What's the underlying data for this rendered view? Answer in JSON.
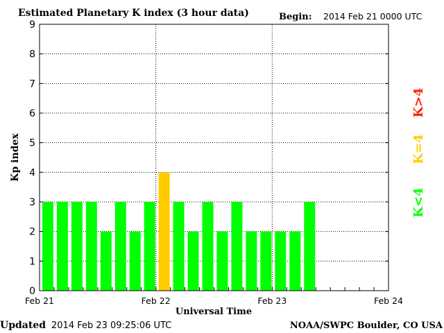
{
  "header": {
    "title": "Estimated Planetary K index (3 hour data)",
    "begin_label": "Begin:",
    "begin_value": "2014 Feb 21 0000 UTC"
  },
  "footer": {
    "updated_label": "Updated",
    "updated_value": "2014 Feb 23 09:25:06 UTC",
    "source": "NOAA/SWPC Boulder, CO USA"
  },
  "legend": {
    "high": "K>4",
    "equal": "K=4",
    "low": "K<4"
  },
  "colors": {
    "low": "#00ff00",
    "equal": "#ffcc00",
    "high": "#ff2200",
    "grid": "#000000",
    "axis": "#000000"
  },
  "chart_data": {
    "type": "bar",
    "title": "Estimated Planetary K index (3 hour data)",
    "xlabel": "Universal Time",
    "ylabel": "Kp index",
    "ylim": [
      0,
      9
    ],
    "yticks": [
      0,
      1,
      2,
      3,
      4,
      5,
      6,
      7,
      8,
      9
    ],
    "xticks": [
      "Feb 21",
      "Feb 22",
      "Feb 23",
      "Feb 24"
    ],
    "interval_hours": 3,
    "grid": true,
    "legend_placement": "right",
    "categories": [
      "Feb 21 00",
      "Feb 21 03",
      "Feb 21 06",
      "Feb 21 09",
      "Feb 21 12",
      "Feb 21 15",
      "Feb 21 18",
      "Feb 21 21",
      "Feb 22 00",
      "Feb 22 03",
      "Feb 22 06",
      "Feb 22 09",
      "Feb 22 12",
      "Feb 22 15",
      "Feb 22 18",
      "Feb 22 21",
      "Feb 23 00",
      "Feb 23 03",
      "Feb 23 06"
    ],
    "values": [
      3,
      3,
      3,
      3,
      2,
      3,
      2,
      3,
      4,
      3,
      2,
      3,
      2,
      3,
      2,
      2,
      2,
      2,
      3
    ]
  }
}
